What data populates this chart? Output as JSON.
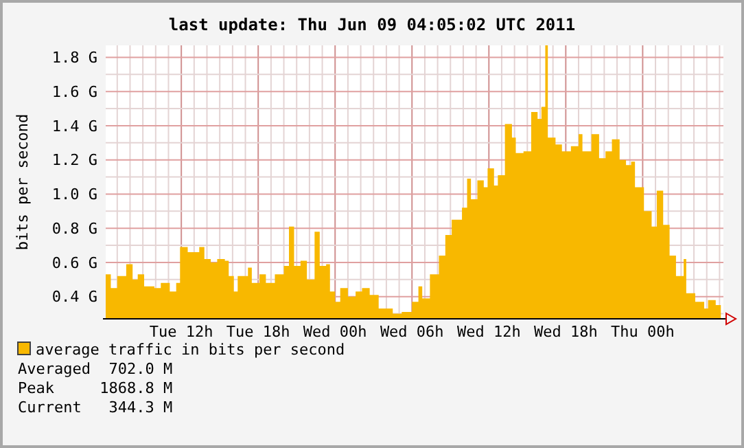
{
  "chart_data": {
    "type": "area",
    "title": "last update: Thu Jun 09 04:05:02 UTC 2011",
    "ylabel": "bits per second",
    "xlim": [
      "2011-06-07T06:06",
      "2011-06-09T06:18"
    ],
    "ylim": [
      0.27,
      1.87
    ],
    "xticks": [
      {
        "value": "2011-06-07T07:00",
        "label": null
      },
      {
        "value": "2011-06-07T08:00",
        "label": null
      },
      {
        "value": "2011-06-07T09:00",
        "label": null
      },
      {
        "value": "2011-06-07T10:00",
        "label": null
      },
      {
        "value": "2011-06-07T11:00",
        "label": null
      },
      {
        "value": "2011-06-07T12:00",
        "label": "Tue 12h"
      },
      {
        "value": "2011-06-07T13:00",
        "label": null
      },
      {
        "value": "2011-06-07T14:00",
        "label": null
      },
      {
        "value": "2011-06-07T15:00",
        "label": null
      },
      {
        "value": "2011-06-07T16:00",
        "label": null
      },
      {
        "value": "2011-06-07T17:00",
        "label": null
      },
      {
        "value": "2011-06-07T18:00",
        "label": "Tue 18h"
      },
      {
        "value": "2011-06-07T19:00",
        "label": null
      },
      {
        "value": "2011-06-07T20:00",
        "label": null
      },
      {
        "value": "2011-06-07T21:00",
        "label": null
      },
      {
        "value": "2011-06-07T22:00",
        "label": null
      },
      {
        "value": "2011-06-07T23:00",
        "label": null
      },
      {
        "value": "2011-06-08T00:00",
        "label": "Wed 00h"
      },
      {
        "value": "2011-06-08T01:00",
        "label": null
      },
      {
        "value": "2011-06-08T02:00",
        "label": null
      },
      {
        "value": "2011-06-08T03:00",
        "label": null
      },
      {
        "value": "2011-06-08T04:00",
        "label": null
      },
      {
        "value": "2011-06-08T05:00",
        "label": null
      },
      {
        "value": "2011-06-08T06:00",
        "label": "Wed 06h"
      },
      {
        "value": "2011-06-08T07:00",
        "label": null
      },
      {
        "value": "2011-06-08T08:00",
        "label": null
      },
      {
        "value": "2011-06-08T09:00",
        "label": null
      },
      {
        "value": "2011-06-08T10:00",
        "label": null
      },
      {
        "value": "2011-06-08T11:00",
        "label": null
      },
      {
        "value": "2011-06-08T12:00",
        "label": "Wed 12h"
      },
      {
        "value": "2011-06-08T13:00",
        "label": null
      },
      {
        "value": "2011-06-08T14:00",
        "label": null
      },
      {
        "value": "2011-06-08T15:00",
        "label": null
      },
      {
        "value": "2011-06-08T16:00",
        "label": null
      },
      {
        "value": "2011-06-08T17:00",
        "label": null
      },
      {
        "value": "2011-06-08T18:00",
        "label": "Wed 18h"
      },
      {
        "value": "2011-06-08T19:00",
        "label": null
      },
      {
        "value": "2011-06-08T20:00",
        "label": null
      },
      {
        "value": "2011-06-08T21:00",
        "label": null
      },
      {
        "value": "2011-06-08T22:00",
        "label": null
      },
      {
        "value": "2011-06-08T23:00",
        "label": null
      },
      {
        "value": "2011-06-09T00:00",
        "label": "Thu 00h"
      },
      {
        "value": "2011-06-09T01:00",
        "label": null
      },
      {
        "value": "2011-06-09T02:00",
        "label": null
      },
      {
        "value": "2011-06-09T03:00",
        "label": null
      },
      {
        "value": "2011-06-09T04:00",
        "label": null
      },
      {
        "value": "2011-06-09T05:00",
        "label": null
      },
      {
        "value": "2011-06-09T06:00",
        "label": null
      }
    ],
    "yticks": [
      {
        "value": 0.3,
        "label": null
      },
      {
        "value": 0.4,
        "label": "0.4 G"
      },
      {
        "value": 0.5,
        "label": null
      },
      {
        "value": 0.6,
        "label": "0.6 G"
      },
      {
        "value": 0.7,
        "label": null
      },
      {
        "value": 0.8,
        "label": "0.8 G"
      },
      {
        "value": 0.9,
        "label": null
      },
      {
        "value": 1.0,
        "label": "1.0 G"
      },
      {
        "value": 1.1,
        "label": null
      },
      {
        "value": 1.2,
        "label": "1.2 G"
      },
      {
        "value": 1.3,
        "label": null
      },
      {
        "value": 1.4,
        "label": "1.4 G"
      },
      {
        "value": 1.5,
        "label": null
      },
      {
        "value": 1.6,
        "label": "1.6 G"
      },
      {
        "value": 1.7,
        "label": null
      },
      {
        "value": 1.8,
        "label": "1.8 G"
      }
    ],
    "grid": true,
    "legend": "bottom",
    "series": [
      {
        "name": "average traffic in bits per second",
        "color": "#f8b800",
        "x": [
          "2011-06-07T06:06",
          "2011-06-07T06:30",
          "2011-06-07T07:00",
          "2011-06-07T07:42",
          "2011-06-07T08:12",
          "2011-06-07T08:36",
          "2011-06-07T09:06",
          "2011-06-07T09:54",
          "2011-06-07T10:24",
          "2011-06-07T11:06",
          "2011-06-07T11:36",
          "2011-06-07T11:54",
          "2011-06-07T12:30",
          "2011-06-07T13:24",
          "2011-06-07T13:48",
          "2011-06-07T14:18",
          "2011-06-07T14:48",
          "2011-06-07T15:24",
          "2011-06-07T15:42",
          "2011-06-07T16:06",
          "2011-06-07T16:24",
          "2011-06-07T17:12",
          "2011-06-07T17:30",
          "2011-06-07T18:06",
          "2011-06-07T18:36",
          "2011-06-07T19:18",
          "2011-06-07T20:00",
          "2011-06-07T20:24",
          "2011-06-07T20:48",
          "2011-06-07T21:18",
          "2011-06-07T21:48",
          "2011-06-07T22:24",
          "2011-06-07T22:48",
          "2011-06-07T23:18",
          "2011-06-07T23:36",
          "2011-06-08T00:00",
          "2011-06-08T00:24",
          "2011-06-08T01:00",
          "2011-06-08T01:36",
          "2011-06-08T02:06",
          "2011-06-08T02:42",
          "2011-06-08T03:24",
          "2011-06-08T04:30",
          "2011-06-08T05:12",
          "2011-06-08T06:00",
          "2011-06-08T06:30",
          "2011-06-08T06:48",
          "2011-06-08T07:24",
          "2011-06-08T08:06",
          "2011-06-08T08:36",
          "2011-06-08T09:06",
          "2011-06-08T09:54",
          "2011-06-08T10:18",
          "2011-06-08T10:36",
          "2011-06-08T11:06",
          "2011-06-08T11:36",
          "2011-06-08T11:54",
          "2011-06-08T12:24",
          "2011-06-08T12:42",
          "2011-06-08T13:15",
          "2011-06-08T13:48",
          "2011-06-08T14:06",
          "2011-06-08T14:42",
          "2011-06-08T15:18",
          "2011-06-08T15:48",
          "2011-06-08T16:06",
          "2011-06-08T16:24",
          "2011-06-08T16:36",
          "2011-06-08T17:12",
          "2011-06-08T17:42",
          "2011-06-08T18:24",
          "2011-06-08T19:00",
          "2011-06-08T19:18",
          "2011-06-08T20:00",
          "2011-06-08T20:36",
          "2011-06-08T21:06",
          "2011-06-08T21:36",
          "2011-06-08T22:12",
          "2011-06-08T22:42",
          "2011-06-08T23:06",
          "2011-06-08T23:24",
          "2011-06-09T00:06",
          "2011-06-09T00:42",
          "2011-06-09T01:06",
          "2011-06-09T01:36",
          "2011-06-09T02:06",
          "2011-06-09T02:36",
          "2011-06-09T03:12",
          "2011-06-09T03:24",
          "2011-06-09T04:06",
          "2011-06-09T04:48",
          "2011-06-09T05:06",
          "2011-06-09T05:42",
          "2011-06-09T06:06"
        ],
        "values": [
          0.53,
          0.45,
          0.52,
          0.59,
          0.5,
          0.53,
          0.46,
          0.45,
          0.48,
          0.43,
          0.48,
          0.69,
          0.66,
          0.69,
          0.62,
          0.6,
          0.62,
          0.61,
          0.52,
          0.43,
          0.52,
          0.57,
          0.48,
          0.53,
          0.48,
          0.53,
          0.58,
          0.81,
          0.58,
          0.61,
          0.5,
          0.78,
          0.58,
          0.59,
          0.43,
          0.37,
          0.45,
          0.4,
          0.43,
          0.45,
          0.41,
          0.33,
          0.3,
          0.31,
          0.37,
          0.46,
          0.39,
          0.53,
          0.64,
          0.76,
          0.85,
          0.92,
          1.09,
          0.97,
          1.08,
          1.04,
          1.15,
          1.05,
          1.11,
          1.41,
          1.33,
          1.24,
          1.25,
          1.48,
          1.44,
          1.51,
          1.87,
          1.33,
          1.29,
          1.25,
          1.28,
          1.35,
          1.25,
          1.35,
          1.21,
          1.25,
          1.32,
          1.2,
          1.17,
          1.19,
          1.04,
          0.9,
          0.81,
          1.02,
          0.82,
          0.64,
          0.52,
          0.62,
          0.42,
          0.37,
          0.33,
          0.38,
          0.35,
          0.38
        ]
      }
    ],
    "annotations": [
      "Averaged  702.0 M",
      "Peak     1868.8 M",
      "Current   344.3 M"
    ]
  }
}
